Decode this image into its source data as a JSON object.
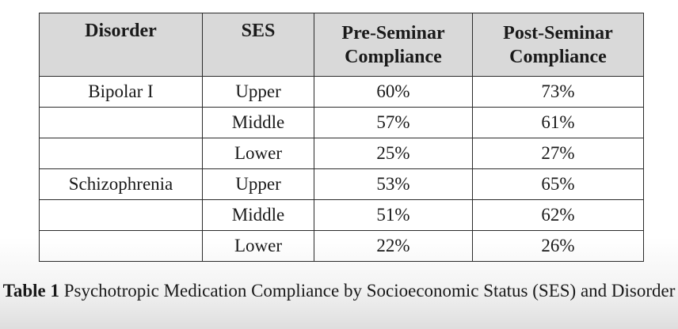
{
  "table": {
    "headers": {
      "disorder": "Disorder",
      "ses": "SES",
      "pre_line1": "Pre-Seminar",
      "pre_line2": "Compliance",
      "post_line1": "Post-Seminar",
      "post_line2": "Compliance"
    },
    "rows": [
      {
        "disorder": "Bipolar I",
        "ses": "Upper",
        "pre": "60%",
        "post": "73%"
      },
      {
        "disorder": "",
        "ses": "Middle",
        "pre": "57%",
        "post": "61%"
      },
      {
        "disorder": "",
        "ses": "Lower",
        "pre": "25%",
        "post": "27%"
      },
      {
        "disorder": "Schizophrenia",
        "ses": "Upper",
        "pre": "53%",
        "post": "65%"
      },
      {
        "disorder": "",
        "ses": "Middle",
        "pre": "51%",
        "post": "62%"
      },
      {
        "disorder": "",
        "ses": "Lower",
        "pre": "22%",
        "post": "26%"
      }
    ]
  },
  "caption": {
    "label": "Table 1",
    "text": "Psychotropic Medication Compliance by Socioeconomic Status (SES) and Disorder"
  },
  "colors": {
    "header_background": "#d9d9d9",
    "border": "#2b2b2b"
  }
}
